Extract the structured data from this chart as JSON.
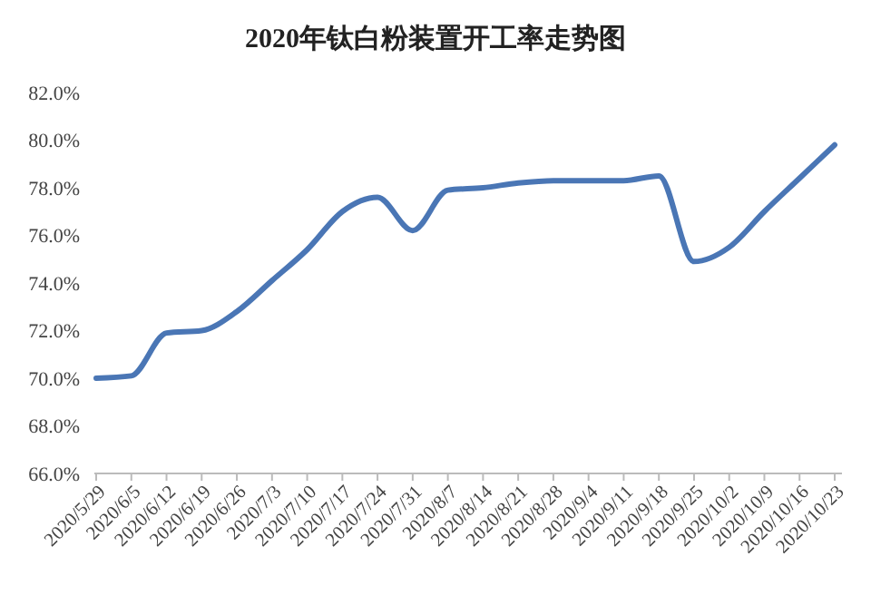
{
  "chart_data": {
    "type": "line",
    "title": "2020年钛白粉装置开工率走势图",
    "categories": [
      "2020/5/29",
      "2020/6/5",
      "2020/6/12",
      "2020/6/19",
      "2020/6/26",
      "2020/7/3",
      "2020/7/10",
      "2020/7/17",
      "2020/7/24",
      "2020/7/31",
      "2020/8/7",
      "2020/8/14",
      "2020/8/21",
      "2020/8/28",
      "2020/9/4",
      "2020/9/11",
      "2020/9/18",
      "2020/9/25",
      "2020/10/2",
      "2020/10/9",
      "2020/10/16",
      "2020/10/23"
    ],
    "series": [
      {
        "color": "#4a76b5",
        "values": [
          70.0,
          70.1,
          71.9,
          72.0,
          72.8,
          74.1,
          75.4,
          77.0,
          77.6,
          76.2,
          77.9,
          78.0,
          78.2,
          78.3,
          78.3,
          78.3,
          78.5,
          74.9,
          75.5,
          77.0,
          78.4,
          79.8
        ]
      }
    ],
    "ylim": [
      66,
      82
    ],
    "yticks": [
      {
        "value": 66,
        "label": "66.0%"
      },
      {
        "value": 68,
        "label": "68.0%"
      },
      {
        "value": 70,
        "label": "70.0%"
      },
      {
        "value": 72,
        "label": "72.0%"
      },
      {
        "value": 74,
        "label": "74.0%"
      },
      {
        "value": 76,
        "label": "76.0%"
      },
      {
        "value": 78,
        "label": "78.0%"
      },
      {
        "value": 80,
        "label": "80.0%"
      },
      {
        "value": 82,
        "label": "82.0%"
      }
    ],
    "marker": "none",
    "line_style": "solid"
  }
}
